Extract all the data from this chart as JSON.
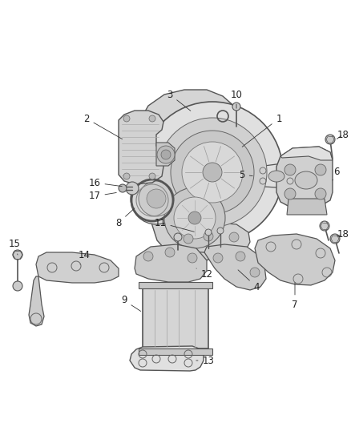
{
  "background_color": "#ffffff",
  "figure_width": 4.38,
  "figure_height": 5.33,
  "dpi": 100,
  "line_color": "#555555",
  "label_color": "#222222",
  "label_fontsize": 8.5
}
